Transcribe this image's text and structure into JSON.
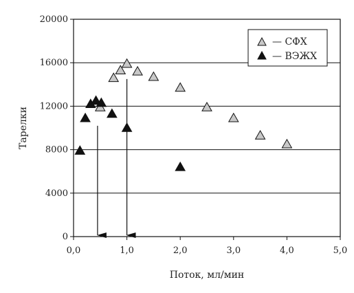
{
  "chart_data": {
    "type": "scatter",
    "xlabel": "Поток, мл/мин",
    "ylabel": "Тарелки",
    "xlim": [
      0,
      5
    ],
    "ylim": [
      0,
      20000
    ],
    "x_ticks": [
      0,
      1,
      2,
      3,
      4,
      5
    ],
    "x_tick_labels": [
      "0,0",
      "1,0",
      "2,0",
      "3,0",
      "4,0",
      "5,0"
    ],
    "y_ticks": [
      0,
      4000,
      8000,
      12000,
      16000,
      20000
    ],
    "y_tick_labels": [
      "0",
      "4000",
      "8000",
      "12000",
      "16000",
      "20000"
    ],
    "grid": "horizontal",
    "legend_position": "top-right",
    "series": [
      {
        "name": "— СФХ",
        "color": "#c8c8c8",
        "marker": "triangle-up",
        "x": [
          0.5,
          0.75,
          0.88,
          1.0,
          1.2,
          1.5,
          2.0,
          2.5,
          3.0,
          3.5,
          4.0
        ],
        "y": [
          11900,
          14600,
          15300,
          15900,
          15200,
          14700,
          13700,
          11900,
          10900,
          9300,
          8500
        ]
      },
      {
        "name": "— ВЭЖХ",
        "color": "#111111",
        "marker": "triangle-up",
        "x": [
          0.12,
          0.22,
          0.32,
          0.42,
          0.52,
          0.72,
          1.0,
          2.0
        ],
        "y": [
          7900,
          10900,
          12200,
          12500,
          12300,
          11300,
          10000,
          6400
        ]
      }
    ],
    "annotations": [
      {
        "type": "arrow-down",
        "x": 0.45,
        "y_from": 10200,
        "y_to": 0
      },
      {
        "type": "arrow-down",
        "x": 1.0,
        "y_from": 14500,
        "y_to": 0
      }
    ]
  }
}
